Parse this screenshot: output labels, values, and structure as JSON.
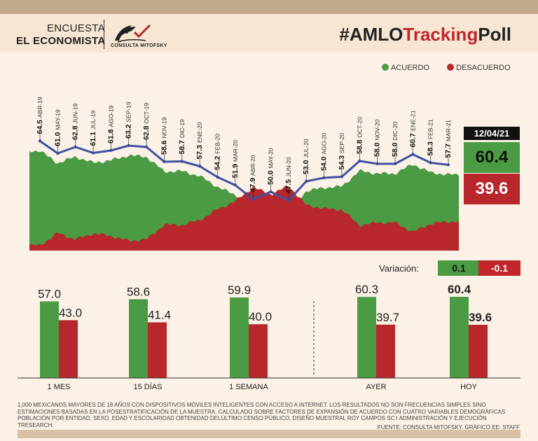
{
  "header": {
    "encuesta": "ENCUESTA",
    "economista": "EL ECONOMISTA",
    "mitofsky": "CONSULTA MITOFSKY",
    "title_prefix": "#AMLO",
    "title_red": "Tracking",
    "title_suffix": "Poll"
  },
  "legend": {
    "acuerdo": "ACUERDO",
    "desacuerdo": "DESACUERDO"
  },
  "colors": {
    "green": "#4a9b43",
    "red": "#b7272b",
    "line": "#3f51a3",
    "background": "#fbf1e6"
  },
  "current": {
    "date": "12/04/21",
    "acuerdo": "60.4",
    "desacuerdo": "39.6"
  },
  "variation": {
    "label": "Variación:",
    "acuerdo": "0.1",
    "desacuerdo": "-0.1"
  },
  "chart_data": [
    {
      "type": "line",
      "series": [
        {
          "points": [
            {
              "label": "ABR-19",
              "value": 64.5
            },
            {
              "label": "MAY-19",
              "value": 61.0
            },
            {
              "label": "JUN-19",
              "value": 62.8
            },
            {
              "label": "JUL-19",
              "value": 61.1
            },
            {
              "label": "AGO-19",
              "value": 61.8
            },
            {
              "label": "SEP-19",
              "value": 63.2
            },
            {
              "label": "OCT-19",
              "value": 62.8
            },
            {
              "label": "NOV-19",
              "value": 58.6
            },
            {
              "label": "DIC-19",
              "value": 58.7
            },
            {
              "label": "ENE-20",
              "value": 57.3
            },
            {
              "label": "FEB-20",
              "value": 54.2
            },
            {
              "label": "MAR-20",
              "value": 51.9
            },
            {
              "label": "ABR-20",
              "value": 47.9
            },
            {
              "label": "MAY-20",
              "value": 50.0
            },
            {
              "label": "JUN-20",
              "value": 47.5
            },
            {
              "label": "JUL-20",
              "value": 53.0
            },
            {
              "label": "AGO-20",
              "value": 54.0
            },
            {
              "label": "SEP-20",
              "value": 54.3
            },
            {
              "label": "OCT-20",
              "value": 58.8
            },
            {
              "label": "NOV-20",
              "value": 58.0
            },
            {
              "label": "DIC-20",
              "value": 58.0
            },
            {
              "label": "ENE-21",
              "value": 60.7
            },
            {
              "label": "FEB-21",
              "value": 58.3
            },
            {
              "label": "MAR-21",
              "value": 57.7
            }
          ]
        }
      ]
    },
    {
      "type": "bar",
      "categories": [
        "1 MES",
        "15 DÍAS",
        "1 SEMANA",
        "AYER",
        "HOY"
      ],
      "series": [
        {
          "values": [
            57.0,
            58.6,
            59.9,
            60.3,
            60.4
          ]
        },
        {
          "values": [
            43.0,
            41.4,
            40.0,
            39.7,
            39.6
          ]
        }
      ],
      "value_labels": {
        "acuerdo": [
          "57.0",
          "58.6",
          "59.9",
          "60.3",
          "60.4"
        ],
        "desacuerdo": [
          "43.0",
          "41.4",
          "40.0",
          "39.7",
          "39.6"
        ]
      }
    }
  ],
  "footnote": "1,000 MEXICANOS MAYORES DE 18 AÑOS CON DISPOSITIVOS MÓVILES INTELIGENTES CON ACCESO A INTERNET. LOS RESULTADOS NO SON FRECUENCIAS SIMPLES SINO ESTIMACIONES BASADAS EN LA POSESTRATIFICACIÓN DE LA MUESTRA. CALCULADO SOBRE FACTORES DE EXPANSIÓN DE ACUERDO CON CUATRO VARIABLES DEMOGRÁFICAS POBLACIÓN POR ENTIDAD, SEXO, EDAD Y ESCOLARIDAD OBTENIDAD DELÚLTIMO CENSO PÚBLICO. DISEÑO MUESTRAL ROY CAMPOS SC I ADMINISTRACIÓN Y EJECUCIÓN TRESEARCH.",
  "source": "FUENTE: CONSULTA MITOFSKY. GRÁFICO EE: STAFF"
}
